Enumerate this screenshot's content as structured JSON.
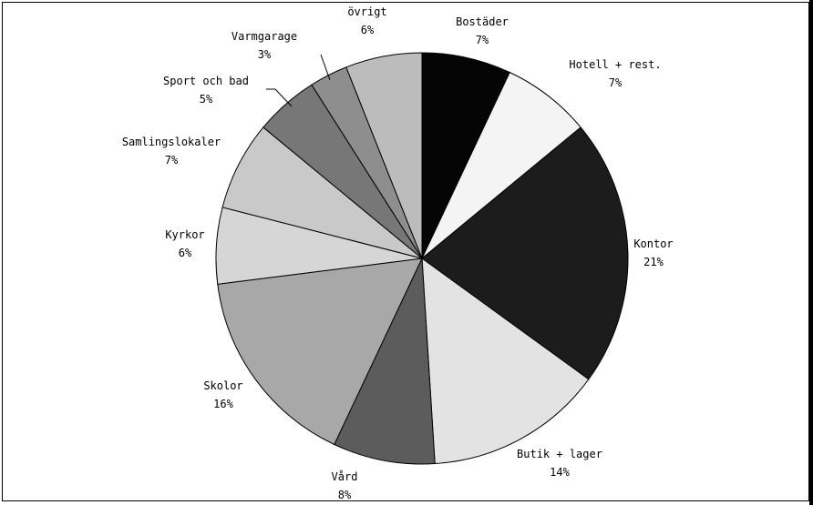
{
  "chart_data": {
    "type": "pie",
    "title": "",
    "slices": [
      {
        "label": "Bostäder",
        "pct_label": "7%",
        "value": 7,
        "color": "#050505"
      },
      {
        "label": "Hotell + rest.",
        "pct_label": "7%",
        "value": 7,
        "color": "#f4f4f4"
      },
      {
        "label": "Kontor",
        "pct_label": "21%",
        "value": 21,
        "color": "#1c1c1c"
      },
      {
        "label": "Butik + lager",
        "pct_label": "14%",
        "value": 14,
        "color": "#e3e3e3"
      },
      {
        "label": "Vård",
        "pct_label": "8%",
        "value": 8,
        "color": "#5c5c5c"
      },
      {
        "label": "Skolor",
        "pct_label": "16%",
        "value": 16,
        "color": "#a8a8a8"
      },
      {
        "label": "Kyrkor",
        "pct_label": "6%",
        "value": 6,
        "color": "#d6d6d6"
      },
      {
        "label": "Samlingslokaler",
        "pct_label": "7%",
        "value": 7,
        "color": "#c9c9c9"
      },
      {
        "label": "Sport och bad",
        "pct_label": "5%",
        "value": 5,
        "color": "#777777"
      },
      {
        "label": "Varmgarage",
        "pct_label": "3%",
        "value": 3,
        "color": "#8e8e8e"
      },
      {
        "label": "övrigt",
        "pct_label": "6%",
        "value": 6,
        "color": "#bcbcbc"
      }
    ]
  }
}
